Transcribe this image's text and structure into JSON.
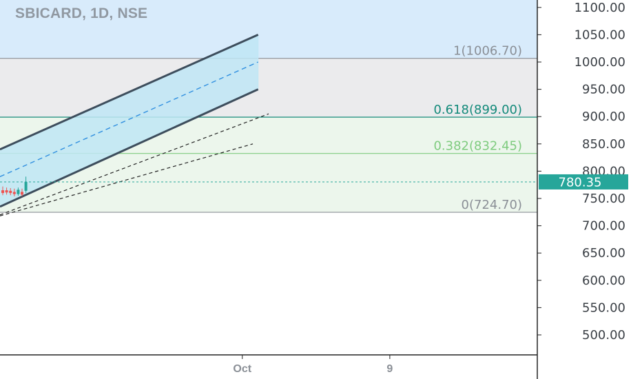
{
  "header": {
    "title": "SBICARD, 1D, NSE"
  },
  "colors": {
    "upper_zone": "#d8ebfb",
    "gray_zone": "#ebebed",
    "green_zone": "#ecf6ec",
    "channel_fill": "#bfe6f5",
    "channel_line": "#3d4d5c",
    "median_line": "#2f8fe0",
    "fib_1": "#8a8f96",
    "fib_0618": "#138a7a",
    "fib_0382": "#7ecb7e",
    "fib_0": "#8a8f96",
    "last_price": "#26a69a",
    "candle_up": "#26a69a",
    "candle_down": "#ef5350",
    "axis": "#222222"
  },
  "chart_data": {
    "type": "candlestick",
    "symbol": "SBICARD",
    "interval": "1D",
    "exchange": "NSE",
    "y_axis": {
      "side": "right",
      "ticks": [
        "1100.00",
        "1050.00",
        "1000.00",
        "950.00",
        "900.00",
        "850.00",
        "800.00",
        "750.00",
        "700.00",
        "650.00",
        "600.00",
        "550.00",
        "500.00"
      ]
    },
    "x_axis": {
      "ticks": [
        "Oct",
        "9"
      ]
    },
    "last_price": {
      "value": 780.35,
      "label": "780.35"
    },
    "fib_levels": [
      {
        "ratio": "1",
        "price": 1006.7,
        "label": "1(1006.70)"
      },
      {
        "ratio": "0.618",
        "price": 899.0,
        "label": "0.618(899.00)"
      },
      {
        "ratio": "0.382",
        "price": 832.45,
        "label": "0.382(832.45)"
      },
      {
        "ratio": "0",
        "price": 724.7,
        "label": "0(724.70)"
      }
    ],
    "candles": [
      {
        "open": 765,
        "high": 772,
        "low": 756,
        "close": 760,
        "dir": "down"
      },
      {
        "open": 765,
        "high": 770,
        "low": 757,
        "close": 761,
        "dir": "down"
      },
      {
        "open": 764,
        "high": 769,
        "low": 756,
        "close": 760,
        "dir": "down"
      },
      {
        "open": 762,
        "high": 768,
        "low": 754,
        "close": 758,
        "dir": "down"
      },
      {
        "open": 758,
        "high": 770,
        "low": 755,
        "close": 766,
        "dir": "up"
      },
      {
        "open": 762,
        "high": 768,
        "low": 754,
        "close": 757,
        "dir": "down"
      },
      {
        "open": 764,
        "high": 790,
        "low": 760,
        "close": 780.35,
        "dir": "up"
      }
    ],
    "pitchfork_channel": {
      "upper": [
        [
          -0.02,
          840
        ],
        [
          0.47,
          1050
        ]
      ],
      "median": [
        [
          -0.02,
          790
        ],
        [
          0.47,
          1000
        ]
      ],
      "lower": [
        [
          -0.02,
          735
        ],
        [
          0.47,
          950
        ]
      ]
    },
    "fan_lines": [
      [
        [
          -0.02,
          720
        ],
        [
          0.49,
          905
        ]
      ],
      [
        [
          -0.02,
          718
        ],
        [
          0.46,
          850
        ]
      ]
    ],
    "timeline": {
      "x_min": -0.02,
      "x_max": 1.0,
      "oct_x": 0.44,
      "nine_x": 0.72
    }
  }
}
